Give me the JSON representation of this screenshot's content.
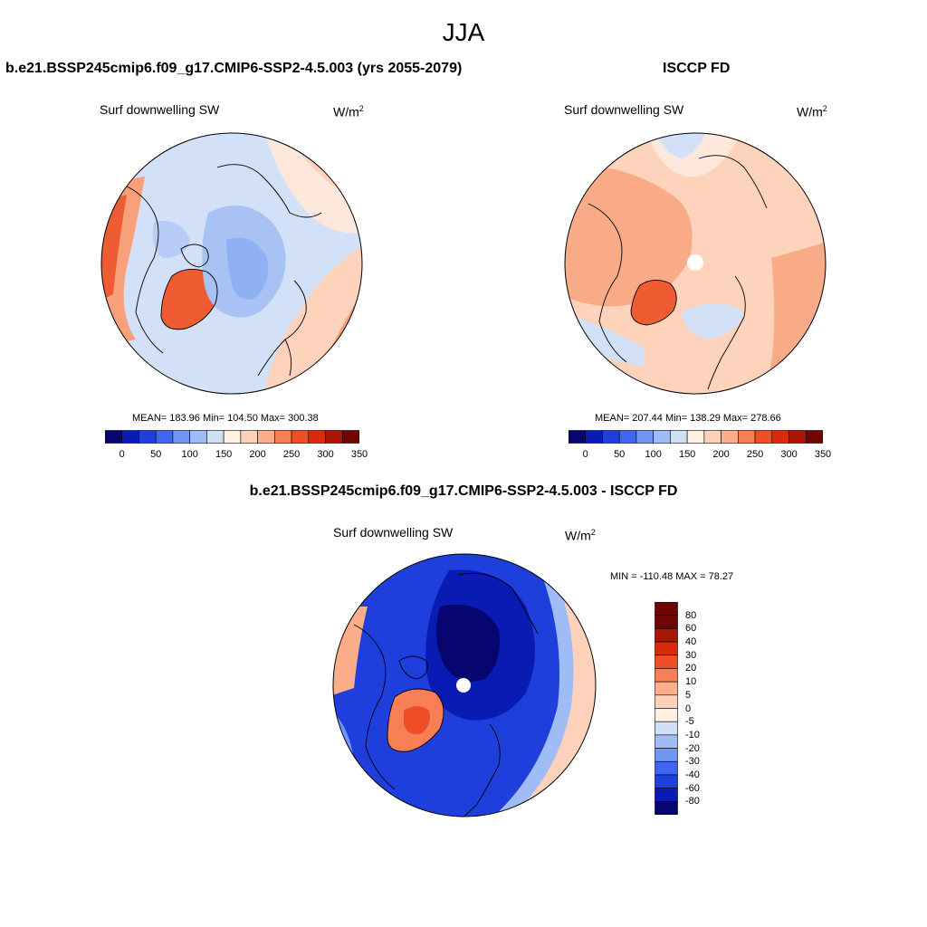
{
  "page_title": "JJA",
  "panels": [
    {
      "title": "b.e21.BSSP245cmip6.f09_g17.CMIP6-SSP2-4.5.003 (yrs 2055-2079)",
      "variable": "Surf downwelling SW",
      "units_base": "W/m",
      "units_exp": "2",
      "stats": "MEAN= 183.96  Min= 104.50  Max= 300.38"
    },
    {
      "title": "ISCCP FD",
      "variable": "Surf downwelling SW",
      "units_base": "W/m",
      "units_exp": "2",
      "stats": "MEAN= 207.44  Min= 138.29  Max= 278.66"
    },
    {
      "title": "b.e21.BSSP245cmip6.f09_g17.CMIP6-SSP2-4.5.003 - ISCCP FD",
      "variable": "Surf downwelling SW",
      "units_base": "W/m",
      "units_exp": "2",
      "stats": "MIN = -110.48 MAX =  78.27"
    }
  ],
  "colorbar_top": {
    "ticks": [
      "0",
      "50",
      "100",
      "150",
      "200",
      "250",
      "300",
      "350"
    ],
    "colors": [
      "#07056e",
      "#0a1bb4",
      "#1e3fdc",
      "#3f66f0",
      "#7096f4",
      "#a0bcf6",
      "#cfdff8",
      "#fff0e2",
      "#fed2ba",
      "#fcae8a",
      "#f77e55",
      "#ee4e25",
      "#d92a0c",
      "#a81604",
      "#6e0602"
    ]
  },
  "colorbar_diff": {
    "ticks": [
      "80",
      "60",
      "40",
      "30",
      "20",
      "10",
      "5",
      "0",
      "-5",
      "-10",
      "-20",
      "-30",
      "-40",
      "-60",
      "-80"
    ],
    "colors": [
      "#6e0602",
      "#a81604",
      "#d92a0c",
      "#ee4e25",
      "#f77e55",
      "#fcae8a",
      "#fed2ba",
      "#fff0e2",
      "#cfdff8",
      "#a0bcf6",
      "#7096f4",
      "#3f66f0",
      "#1e3fdc",
      "#0a1bb4",
      "#07056e"
    ]
  }
}
